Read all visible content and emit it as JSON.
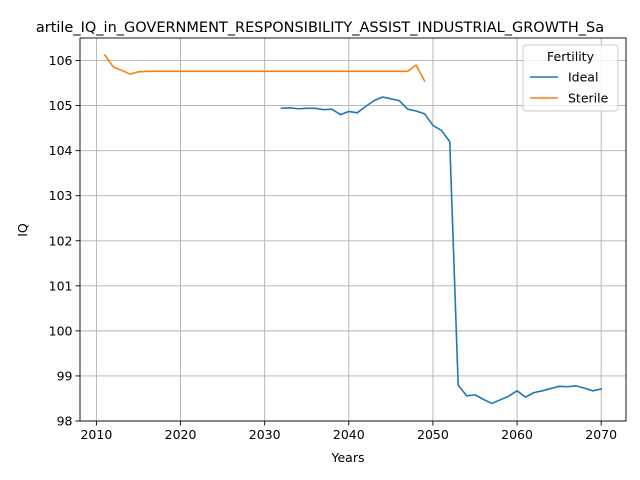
{
  "chart_data": {
    "type": "line",
    "title": "artile_IQ_in_GOVERNMENT_RESPONSIBILITY_ASSIST_INDUSTRIAL_GROWTH_Sa",
    "xlabel": "Years",
    "ylabel": "IQ",
    "xlim": [
      2008.05,
      2072.95
    ],
    "ylim": [
      98,
      106.5
    ],
    "xticks": [
      2010,
      2020,
      2030,
      2040,
      2050,
      2060,
      2070
    ],
    "yticks": [
      98,
      99,
      100,
      101,
      102,
      103,
      104,
      105,
      106
    ],
    "grid": true,
    "legend": {
      "title": "Fertility",
      "position": "top-right"
    },
    "series": [
      {
        "name": "Ideal",
        "color": "#1f77b4",
        "x": [
          2032,
          2033,
          2034,
          2035,
          2036,
          2037,
          2038,
          2039,
          2040,
          2041,
          2042,
          2043,
          2044,
          2045,
          2046,
          2047,
          2048,
          2049,
          2050,
          2051,
          2052,
          2053,
          2054,
          2055,
          2056,
          2057,
          2058,
          2059,
          2060,
          2061,
          2062,
          2063,
          2064,
          2065,
          2066,
          2067,
          2068,
          2069,
          2070
        ],
        "y": [
          104.94,
          104.95,
          104.93,
          104.94,
          104.94,
          104.91,
          104.92,
          104.8,
          104.87,
          104.84,
          104.98,
          105.11,
          105.19,
          105.15,
          105.11,
          104.92,
          104.88,
          104.82,
          104.56,
          104.45,
          104.2,
          98.8,
          98.56,
          98.58,
          98.48,
          98.39,
          98.47,
          98.55,
          98.67,
          98.53,
          98.63,
          98.67,
          98.72,
          98.77,
          98.76,
          98.78,
          98.73,
          98.67,
          98.71
        ]
      },
      {
        "name": "Sterile",
        "color": "#ff7f0e",
        "x": [
          2011,
          2012,
          2013,
          2014,
          2015,
          2016,
          2017,
          2018,
          2019,
          2020,
          2021,
          2022,
          2023,
          2024,
          2025,
          2026,
          2027,
          2028,
          2029,
          2030,
          2031,
          2032,
          2033,
          2034,
          2035,
          2036,
          2037,
          2038,
          2039,
          2040,
          2041,
          2042,
          2043,
          2044,
          2045,
          2046,
          2047,
          2048,
          2049
        ],
        "y": [
          106.12,
          105.86,
          105.78,
          105.7,
          105.75,
          105.76,
          105.76,
          105.76,
          105.76,
          105.76,
          105.76,
          105.76,
          105.76,
          105.76,
          105.76,
          105.76,
          105.76,
          105.76,
          105.76,
          105.76,
          105.76,
          105.76,
          105.76,
          105.76,
          105.76,
          105.76,
          105.76,
          105.76,
          105.76,
          105.76,
          105.76,
          105.76,
          105.76,
          105.76,
          105.76,
          105.76,
          105.76,
          105.9,
          105.55
        ]
      }
    ]
  }
}
